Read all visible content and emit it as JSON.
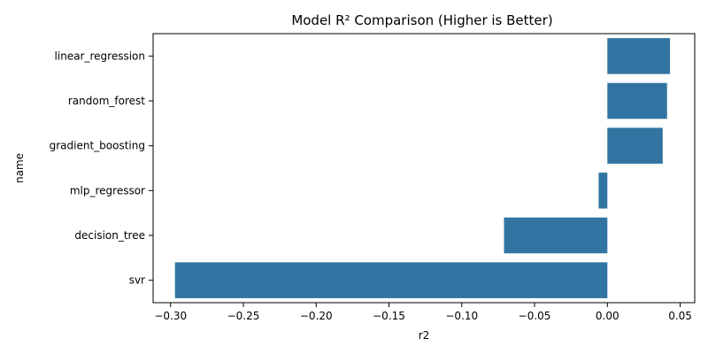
{
  "chart_data": {
    "type": "bar",
    "orientation": "horizontal",
    "title": "Model R² Comparison (Higher is Better)",
    "xlabel": "r2",
    "ylabel": "name",
    "categories": [
      "linear_regression",
      "random_forest",
      "gradient_boosting",
      "mlp_regressor",
      "decision_tree",
      "svr"
    ],
    "values": [
      0.043,
      0.041,
      0.038,
      -0.006,
      -0.071,
      -0.297
    ],
    "xlim": [
      -0.312,
      0.06
    ],
    "xticks": [
      -0.3,
      -0.25,
      -0.2,
      -0.15,
      -0.1,
      -0.05,
      0.0,
      0.05
    ],
    "xtick_labels": [
      "−0.30",
      "−0.25",
      "−0.20",
      "−0.15",
      "−0.10",
      "−0.05",
      "0.00",
      "0.05"
    ],
    "bar_color": "#3274a1",
    "grid": false,
    "legend": "none"
  }
}
